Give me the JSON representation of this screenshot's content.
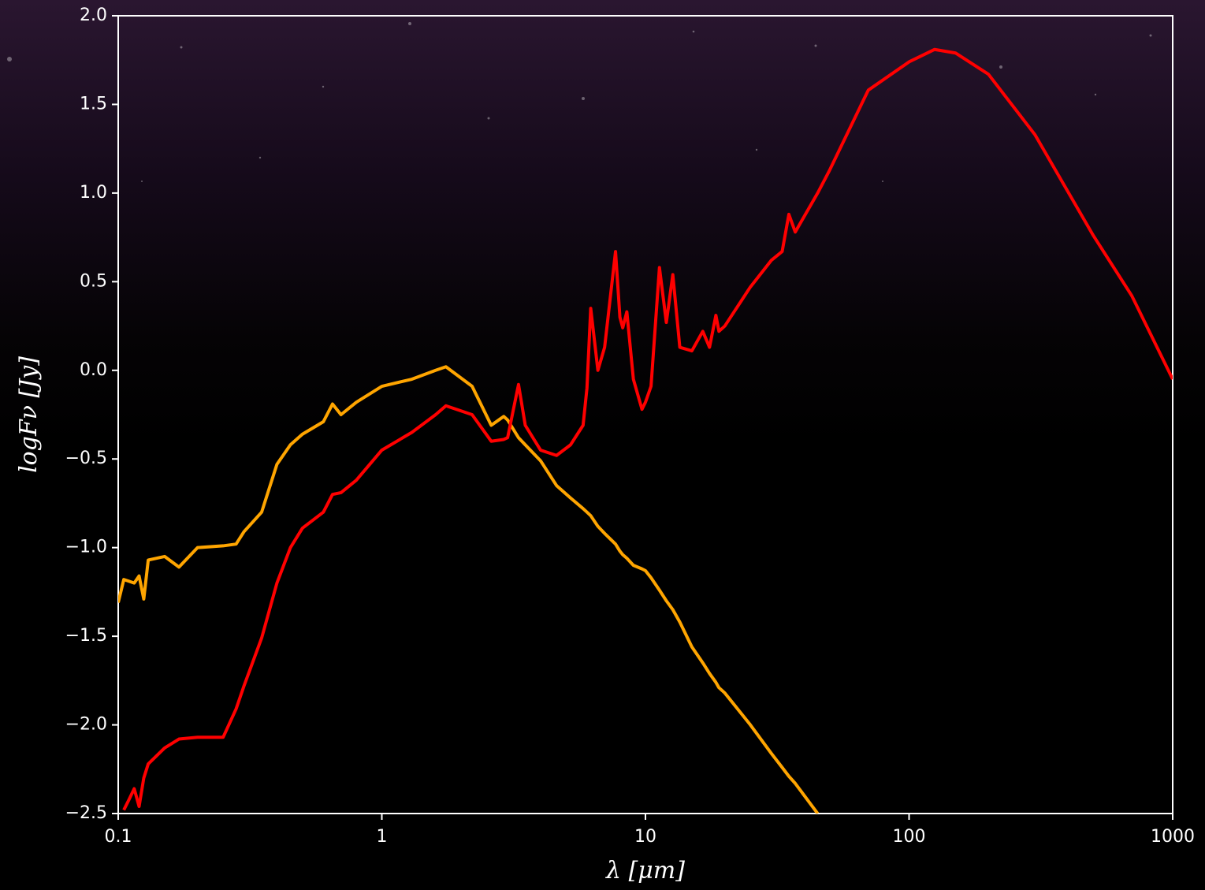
{
  "chart_data": {
    "type": "line",
    "xlabel": "λ [μm]",
    "ylabel": "logFν [Jy]",
    "xscale": "log",
    "xlim": [
      0.1,
      1000
    ],
    "xticks": [
      0.1,
      1,
      10,
      100,
      1000
    ],
    "ylim": [
      -2.5,
      2.0
    ],
    "yticks": [
      {
        "value": -2.5,
        "label": "−2.5"
      },
      {
        "value": -2.0,
        "label": "−2.0"
      },
      {
        "value": -1.5,
        "label": "−1.5"
      },
      {
        "value": -1.0,
        "label": "−1.0"
      },
      {
        "value": -0.5,
        "label": "−0.5"
      },
      {
        "value": 0.0,
        "label": "0.0"
      },
      {
        "value": 0.5,
        "label": "0.5"
      },
      {
        "value": 1.0,
        "label": "1.0"
      },
      {
        "value": 1.5,
        "label": "1.5"
      },
      {
        "value": 2.0,
        "label": "2.0"
      }
    ],
    "grid": false,
    "x": [
      0.1,
      0.105,
      0.11,
      0.115,
      0.12,
      0.125,
      0.13,
      0.15,
      0.17,
      0.2,
      0.25,
      0.28,
      0.3,
      0.35,
      0.4,
      0.45,
      0.5,
      0.6,
      0.65,
      0.7,
      0.8,
      1.0,
      1.3,
      1.6,
      1.75,
      2.2,
      2.6,
      2.9,
      3.0,
      3.3,
      3.5,
      4.0,
      4.6,
      5.2,
      5.8,
      6.0,
      6.2,
      6.6,
      7.0,
      7.7,
      8.0,
      8.2,
      8.5,
      9.0,
      9.7,
      10,
      10.5,
      11.3,
      12,
      12.7,
      13.5,
      15,
      16.5,
      17.5,
      18.5,
      19,
      20,
      25,
      30,
      33,
      35,
      37,
      45,
      50,
      70,
      100,
      125,
      150,
      200,
      300,
      500,
      700,
      1000
    ],
    "series": [
      {
        "color": "#ffa500",
        "values": [
          -1.31,
          -1.18,
          -1.19,
          -1.2,
          -1.16,
          -1.29,
          -1.07,
          -1.05,
          -1.11,
          -1.0,
          -0.99,
          -0.98,
          -0.91,
          -0.8,
          -0.53,
          -0.42,
          -0.36,
          -0.29,
          -0.19,
          -0.25,
          -0.18,
          -0.09,
          -0.05,
          0.0,
          0.02,
          -0.09,
          -0.31,
          -0.26,
          -0.28,
          -0.38,
          -0.42,
          -0.51,
          -0.65,
          -0.72,
          -0.78,
          -0.8,
          -0.82,
          -0.88,
          -0.92,
          -0.98,
          -1.02,
          -1.04,
          -1.06,
          -1.1,
          -1.12,
          -1.13,
          -1.17,
          -1.24,
          -1.3,
          -1.35,
          -1.42,
          -1.56,
          -1.65,
          -1.71,
          -1.76,
          -1.79,
          -1.82,
          -2.0,
          -2.16,
          -2.24,
          -2.29,
          -2.33,
          -2.5,
          null,
          null,
          null,
          null,
          null,
          null,
          null,
          null,
          null,
          null
        ]
      },
      {
        "color": "#ff0000",
        "values": [
          null,
          -2.48,
          -2.42,
          -2.36,
          -2.46,
          -2.3,
          -2.22,
          -2.13,
          -2.08,
          -2.07,
          -2.07,
          -1.91,
          -1.78,
          -1.51,
          -1.2,
          -1.0,
          -0.89,
          -0.8,
          -0.7,
          -0.69,
          -0.62,
          -0.45,
          -0.35,
          -0.25,
          -0.2,
          -0.25,
          -0.4,
          -0.39,
          -0.38,
          -0.08,
          -0.31,
          -0.45,
          -0.48,
          -0.42,
          -0.31,
          -0.1,
          0.35,
          0.0,
          0.13,
          0.67,
          0.3,
          0.24,
          0.33,
          -0.05,
          -0.22,
          -0.18,
          -0.09,
          0.58,
          0.27,
          0.54,
          0.13,
          0.11,
          0.22,
          0.13,
          0.31,
          0.22,
          0.25,
          0.47,
          0.62,
          0.67,
          0.88,
          0.78,
          1.0,
          1.13,
          1.58,
          1.74,
          1.81,
          1.79,
          1.67,
          1.33,
          0.76,
          0.42,
          -0.05
        ]
      }
    ]
  }
}
